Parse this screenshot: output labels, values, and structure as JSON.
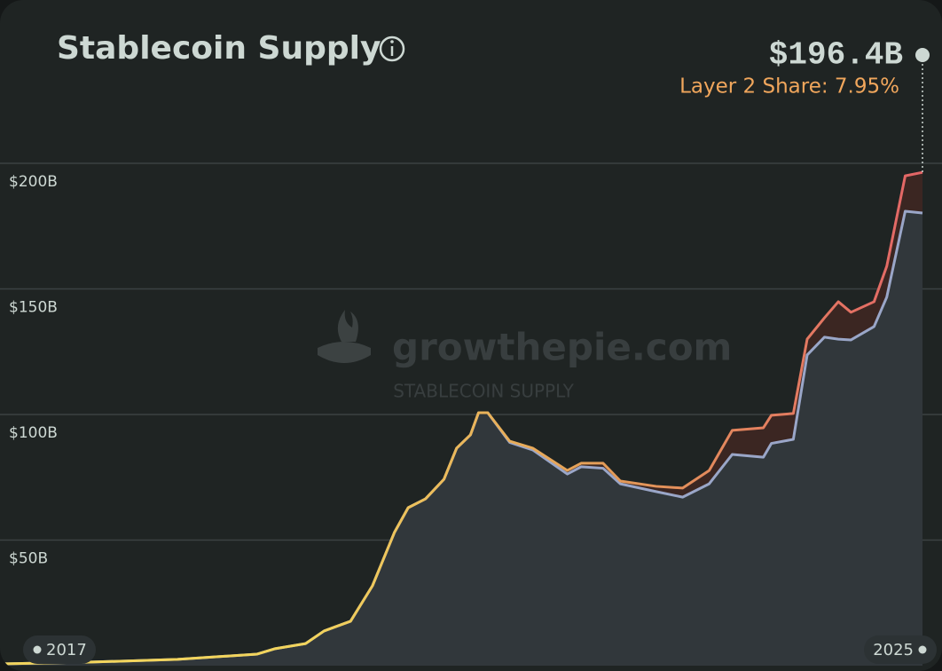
{
  "chart_data": {
    "type": "area",
    "title": "Stablecoin Supply",
    "headline": "$196.4B",
    "subtitle": "Layer 2 Share: 7.95%",
    "watermark": "growthepie.com",
    "watermark_subtitle": "STABLECOIN SUPPLY",
    "x": [
      2017.0,
      2017.77,
      2018.54,
      2019.23,
      2019.38,
      2019.65,
      2019.81,
      2020.04,
      2020.23,
      2020.42,
      2020.54,
      2020.69,
      2020.85,
      2020.96,
      2021.08,
      2021.15,
      2021.23,
      2021.42,
      2021.62,
      2021.92,
      2022.04,
      2022.23,
      2022.38,
      2022.69,
      2022.92,
      2023.15,
      2023.35,
      2023.62,
      2023.69,
      2023.88,
      2024.0,
      2024.15,
      2024.27,
      2024.38,
      2024.58,
      2024.69,
      2024.85,
      2025.0
    ],
    "series": [
      {
        "color": "#e36567",
        "gradient": [
          "#f2d45c",
          "#f2d45c",
          "#e39a58",
          "#e36567"
        ],
        "band_color": "#3b2622",
        "values": [
          0.7,
          1.4,
          2.5,
          4.6,
          6.7,
          8.8,
          13.8,
          17.7,
          31.8,
          53,
          62.9,
          66.4,
          74.2,
          86.6,
          91.9,
          100.7,
          100.7,
          89.4,
          86.6,
          77.7,
          80.6,
          80.6,
          73.5,
          71.4,
          70.7,
          77.7,
          93.7,
          94.7,
          99.7,
          100.4,
          130,
          138.5,
          144.9,
          140.7,
          144.9,
          159,
          195,
          196.4
        ]
      },
      {
        "color": "#9aa6c8",
        "fill": "#31373b",
        "values": [
          0.7,
          1.4,
          2.5,
          4.6,
          6.7,
          8.8,
          13.8,
          17.7,
          31.8,
          53,
          62.9,
          66.4,
          74.2,
          86.6,
          91.9,
          100.7,
          100.7,
          88.9,
          85.9,
          76.3,
          79.2,
          78.6,
          72.4,
          69.3,
          67.1,
          72.4,
          84.1,
          83,
          88.5,
          90.1,
          123.7,
          130.8,
          130,
          129.7,
          135,
          146.7,
          180.9,
          180.2
        ]
      }
    ],
    "xlim": [
      2017,
      2025
    ],
    "xticks": [
      2017,
      2025
    ],
    "ylim": [
      0,
      200
    ],
    "yticks": [
      {
        "value": 50,
        "label": "$50B"
      },
      {
        "value": 100,
        "label": "$100B"
      },
      {
        "value": 150,
        "label": "$150B"
      },
      {
        "value": 200,
        "label": "$200B"
      }
    ],
    "grid": true
  }
}
